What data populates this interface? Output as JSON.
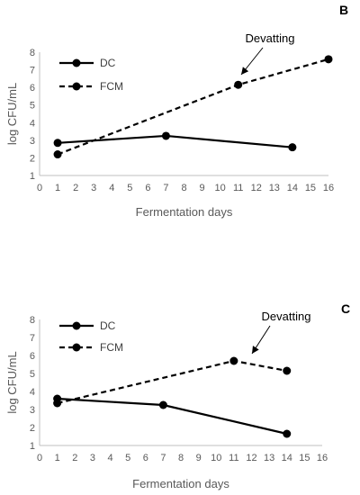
{
  "chart_data": [
    {
      "type": "line",
      "panel": "B",
      "xlabel": "Fermentation days",
      "ylabel": "log CFU/mL",
      "xlim": [
        0,
        16
      ],
      "ylim": [
        1,
        8
      ],
      "xticks": [
        0,
        1,
        2,
        3,
        4,
        5,
        6,
        7,
        8,
        9,
        10,
        11,
        12,
        13,
        14,
        15,
        16
      ],
      "yticks": [
        1,
        2,
        3,
        4,
        5,
        6,
        7,
        8
      ],
      "grid": false,
      "legend": "top-left",
      "series": [
        {
          "name": "DC",
          "style": "solid",
          "x": [
            1,
            7,
            14
          ],
          "y": [
            2.85,
            3.25,
            2.6
          ]
        },
        {
          "name": "FCM",
          "style": "dashed",
          "x": [
            1,
            11,
            16
          ],
          "y": [
            2.2,
            6.15,
            7.6
          ]
        }
      ],
      "annotations": [
        {
          "text": "Devatting",
          "x": 11,
          "y": 6.15
        }
      ]
    },
    {
      "type": "line",
      "panel": "C",
      "xlabel": "Fermentation days",
      "ylabel": "log CFU/mL",
      "xlim": [
        0,
        16
      ],
      "ylim": [
        1,
        8
      ],
      "xticks": [
        0,
        1,
        2,
        3,
        4,
        5,
        6,
        7,
        8,
        9,
        10,
        11,
        12,
        13,
        14,
        15,
        16
      ],
      "yticks": [
        1,
        2,
        3,
        4,
        5,
        6,
        7,
        8
      ],
      "grid": false,
      "legend": "top-left",
      "series": [
        {
          "name": "DC",
          "style": "solid",
          "x": [
            1,
            7,
            14
          ],
          "y": [
            3.6,
            3.25,
            1.65
          ]
        },
        {
          "name": "FCM",
          "style": "dashed",
          "x": [
            1,
            11,
            14
          ],
          "y": [
            3.35,
            5.7,
            5.15
          ]
        }
      ],
      "annotations": [
        {
          "text": "Devatting",
          "x": 11,
          "y": 5.7
        }
      ]
    }
  ],
  "colors": {
    "line": "#000000",
    "axis": "#bfbfbf",
    "text": "#595959"
  }
}
